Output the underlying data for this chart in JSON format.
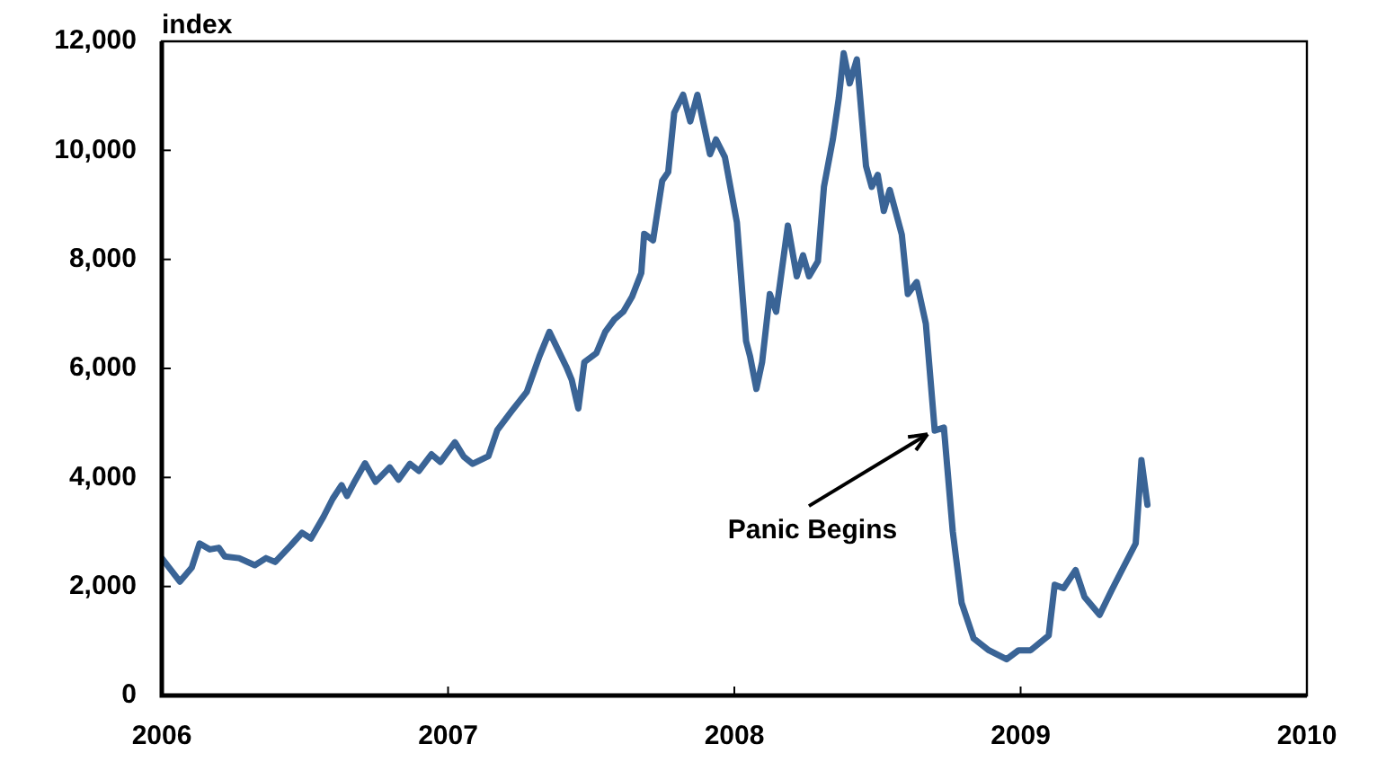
{
  "chart_data": {
    "type": "line",
    "ylabel": "index",
    "color": "#3a6496",
    "x": [
      2006.0,
      2006.063,
      2006.105,
      2006.132,
      2006.168,
      2006.199,
      2006.22,
      2006.27,
      2006.325,
      2006.364,
      2006.396,
      2006.45,
      2006.49,
      2006.521,
      2006.565,
      2006.597,
      2006.628,
      2006.647,
      2006.67,
      2006.71,
      2006.747,
      2006.796,
      2006.827,
      2006.867,
      2006.898,
      2006.942,
      2006.973,
      2007.024,
      2007.055,
      2007.086,
      2007.141,
      2007.172,
      2007.224,
      2007.275,
      2007.319,
      2007.354,
      2007.413,
      2007.432,
      2007.455,
      2007.476,
      2007.518,
      2007.549,
      2007.581,
      2007.612,
      2007.643,
      2007.675,
      2007.685,
      2007.716,
      2007.748,
      2007.769,
      2007.79,
      2007.821,
      2007.846,
      2007.871,
      2007.915,
      2007.936,
      2007.967,
      2008.009,
      2008.041,
      2008.055,
      2008.077,
      2008.097,
      2008.124,
      2008.146,
      2008.187,
      2008.218,
      2008.24,
      2008.261,
      2008.292,
      2008.313,
      2008.344,
      2008.365,
      2008.382,
      2008.403,
      2008.428,
      2008.46,
      2008.48,
      2008.501,
      2008.522,
      2008.543,
      2008.585,
      2008.606,
      2008.637,
      2008.669,
      2008.7,
      2008.732,
      2008.763,
      2008.794,
      2008.836,
      2008.889,
      2008.951,
      2008.993,
      2009.035,
      2009.098,
      2009.119,
      2009.15,
      2009.192,
      2009.223,
      2009.276,
      2009.317,
      2009.349,
      2009.402,
      2009.422,
      2009.443
    ],
    "values": [
      2520,
      2090,
      2350,
      2790,
      2680,
      2710,
      2550,
      2520,
      2390,
      2520,
      2450,
      2750,
      2985,
      2880,
      3280,
      3610,
      3860,
      3660,
      3890,
      4260,
      3920,
      4185,
      3960,
      4250,
      4120,
      4425,
      4285,
      4645,
      4380,
      4250,
      4390,
      4870,
      5230,
      5570,
      6220,
      6670,
      6030,
      5790,
      5265,
      6115,
      6280,
      6670,
      6900,
      7040,
      7320,
      7750,
      8470,
      8350,
      9440,
      9600,
      10690,
      11020,
      10530,
      11020,
      9930,
      10200,
      9875,
      8675,
      6500,
      6220,
      5625,
      6115,
      7365,
      7040,
      8620,
      7690,
      8075,
      7690,
      7965,
      9330,
      10200,
      10960,
      11780,
      11230,
      11670,
      9710,
      9330,
      9550,
      8890,
      9275,
      8455,
      7365,
      7585,
      6820,
      4860,
      4915,
      3010,
      1700,
      1045,
      830,
      665,
      830,
      830,
      1100,
      2030,
      1970,
      2300,
      1810,
      1480,
      1920,
      2250,
      2790,
      4320,
      3500
    ],
    "xlim": [
      2006,
      2010
    ],
    "xticks": [
      2006,
      2007,
      2008,
      2009,
      2010
    ],
    "ylim": [
      0,
      12000
    ],
    "yticks": [
      0,
      {
        "value": 2000,
        "label": "2,000"
      },
      {
        "value": 4000,
        "label": "4,000"
      },
      {
        "value": 6000,
        "label": "6,000"
      },
      {
        "value": 8000,
        "label": "8,000"
      },
      {
        "value": 10000,
        "label": "10,000"
      },
      {
        "value": 12000,
        "label": "12,000"
      }
    ],
    "grid": false,
    "legend": false,
    "annotations": [
      {
        "text": "Panic Begins",
        "x": 2008.7,
        "y": 4860
      }
    ]
  }
}
